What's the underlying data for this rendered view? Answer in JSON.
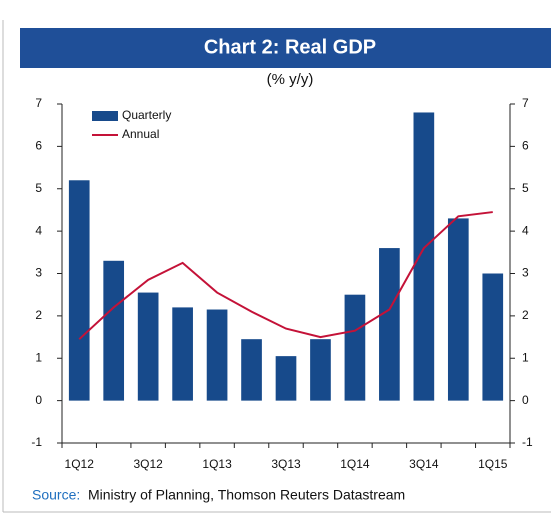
{
  "chart_data": {
    "type": "bar",
    "title": "Chart 2: Real GDP",
    "subtitle": "(% y/y)",
    "categories": [
      "1Q12",
      null,
      "3Q12",
      null,
      "1Q13",
      null,
      "3Q13",
      null,
      "1Q14",
      null,
      "3Q14",
      null,
      "1Q15"
    ],
    "series": [
      {
        "name": "Quarterly",
        "type": "bar",
        "color": "#174a8b",
        "values": [
          5.2,
          3.3,
          2.55,
          2.2,
          2.15,
          1.45,
          1.05,
          1.45,
          2.5,
          3.6,
          6.8,
          4.3,
          3.0
        ]
      },
      {
        "name": "Annual",
        "type": "line",
        "color": "#c41238",
        "values": [
          1.45,
          2.2,
          2.85,
          3.25,
          2.55,
          2.1,
          1.7,
          1.5,
          1.65,
          2.15,
          3.6,
          4.35,
          4.45
        ]
      }
    ],
    "ylim": [
      -1,
      7
    ],
    "yticks": [
      -1,
      0,
      1,
      2,
      3,
      4,
      5,
      6,
      7
    ],
    "y2lim": [
      -1,
      7
    ],
    "y2ticks": [
      -1,
      0,
      1,
      2,
      3,
      4,
      5,
      6,
      7
    ],
    "legend": "top-left",
    "source_label": "Source:",
    "source": "Ministry of Planning, Thomson Reuters Datastream"
  }
}
